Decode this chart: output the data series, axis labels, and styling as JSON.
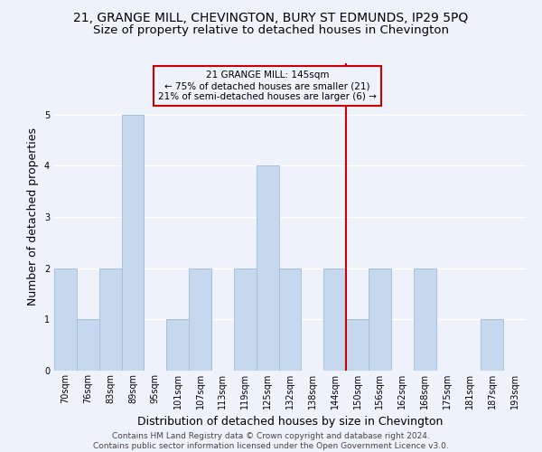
{
  "title_line1": "21, GRANGE MILL, CHEVINGTON, BURY ST EDMUNDS, IP29 5PQ",
  "title_line2": "Size of property relative to detached houses in Chevington",
  "xlabel": "Distribution of detached houses by size in Chevington",
  "ylabel": "Number of detached properties",
  "categories": [
    "70sqm",
    "76sqm",
    "83sqm",
    "89sqm",
    "95sqm",
    "101sqm",
    "107sqm",
    "113sqm",
    "119sqm",
    "125sqm",
    "132sqm",
    "138sqm",
    "144sqm",
    "150sqm",
    "156sqm",
    "162sqm",
    "168sqm",
    "175sqm",
    "181sqm",
    "187sqm",
    "193sqm"
  ],
  "values": [
    2,
    1,
    2,
    5,
    0,
    1,
    2,
    0,
    2,
    4,
    2,
    0,
    2,
    1,
    2,
    0,
    2,
    0,
    0,
    1,
    0
  ],
  "bar_color": "#c5d8ee",
  "bar_edgecolor": "#a8c0de",
  "vline_index": 12.5,
  "annotation_text_line1": "21 GRANGE MILL: 145sqm",
  "annotation_text_line2": "← 75% of detached houses are smaller (21)",
  "annotation_text_line3": "21% of semi-detached houses are larger (6) →",
  "annotation_box_color": "#cc0000",
  "vline_color": "#cc0000",
  "ylim": [
    0,
    6
  ],
  "yticks": [
    0,
    1,
    2,
    3,
    4,
    5,
    6
  ],
  "footer_line1": "Contains HM Land Registry data © Crown copyright and database right 2024.",
  "footer_line2": "Contains public sector information licensed under the Open Government Licence v3.0.",
  "background_color": "#eef2fb",
  "grid_color": "#ffffff",
  "title_fontsize": 10,
  "subtitle_fontsize": 9.5,
  "ylabel_fontsize": 9,
  "xlabel_fontsize": 9,
  "tick_fontsize": 7,
  "footer_fontsize": 6.5,
  "annotation_fontsize": 7.5
}
